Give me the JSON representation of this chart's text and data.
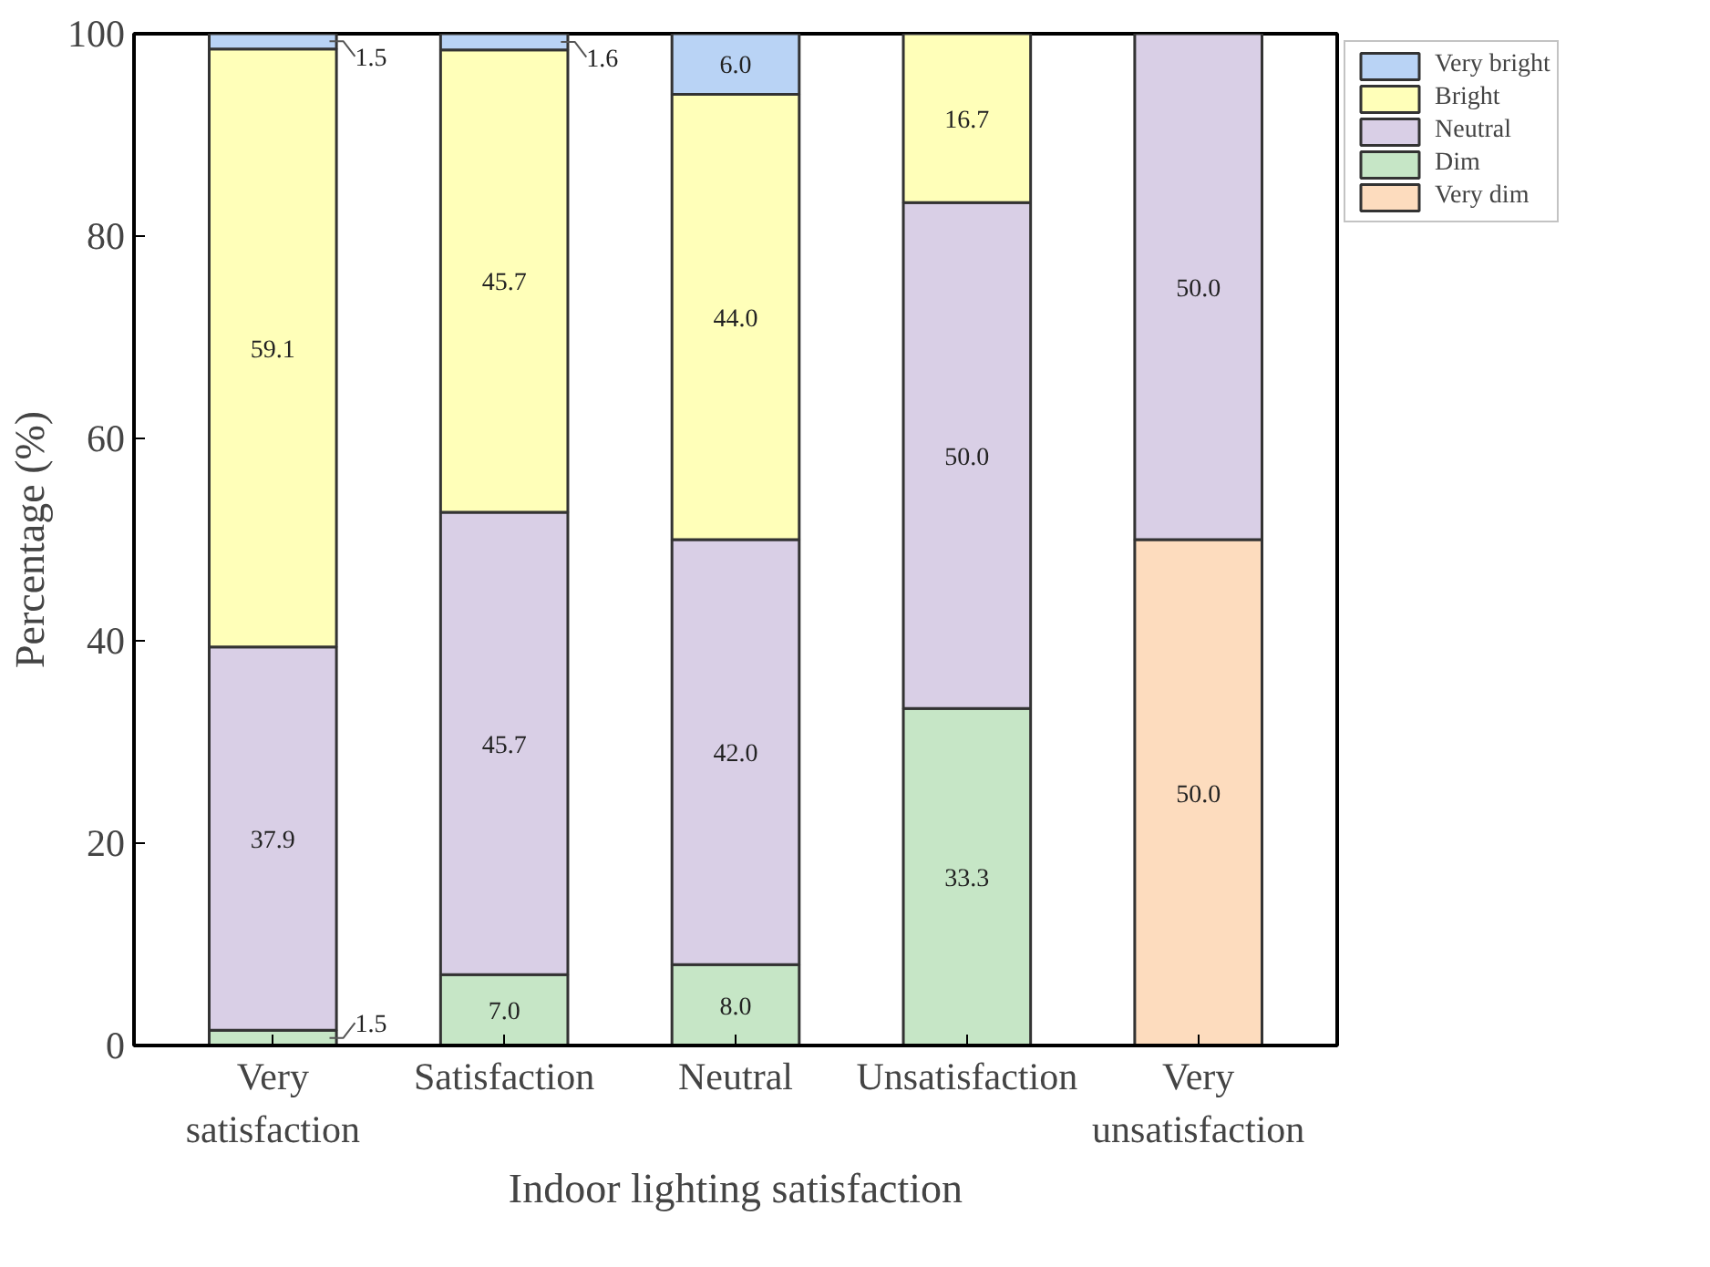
{
  "chart_data": {
    "type": "bar",
    "stacked": true,
    "xlabel": "Indoor lighting satisfaction",
    "ylabel": "Percentage (%)",
    "categories": [
      "Very\nsatisfaction",
      "Satisfaction",
      "Neutral",
      "Unsatisfaction",
      "Very\nunsatisfaction"
    ],
    "series": [
      {
        "name": "Very dim",
        "color": "#fddcbe",
        "values": [
          null,
          null,
          null,
          null,
          50.0
        ],
        "value_labels": [
          null,
          null,
          null,
          null,
          "50.0"
        ]
      },
      {
        "name": "Dim",
        "color": "#c6e6c6",
        "values": [
          1.5,
          7.0,
          8.0,
          33.3,
          null
        ],
        "value_labels": [
          "1.5",
          "7.0",
          "8.0",
          "33.3",
          null
        ]
      },
      {
        "name": "Neutral",
        "color": "#d9cfe6",
        "values": [
          37.9,
          45.7,
          42.0,
          50.0,
          50.0
        ],
        "value_labels": [
          "37.9",
          "45.7",
          "42.0",
          "50.0",
          "50.0"
        ]
      },
      {
        "name": "Bright",
        "color": "#ffffb9",
        "values": [
          59.1,
          45.7,
          44.0,
          16.7,
          null
        ],
        "value_labels": [
          "59.1",
          "45.7",
          "44.0",
          "16.7",
          null
        ]
      },
      {
        "name": "Very bright",
        "color": "#b9d3f5",
        "values": [
          1.5,
          1.6,
          6.0,
          null,
          null
        ],
        "value_labels": [
          "1.5",
          "1.6",
          "6.0",
          null,
          null
        ]
      }
    ],
    "ylim": [
      0,
      100
    ],
    "yticks": [
      0,
      20,
      40,
      60,
      80,
      100
    ],
    "grid": false,
    "legend": "top right"
  }
}
